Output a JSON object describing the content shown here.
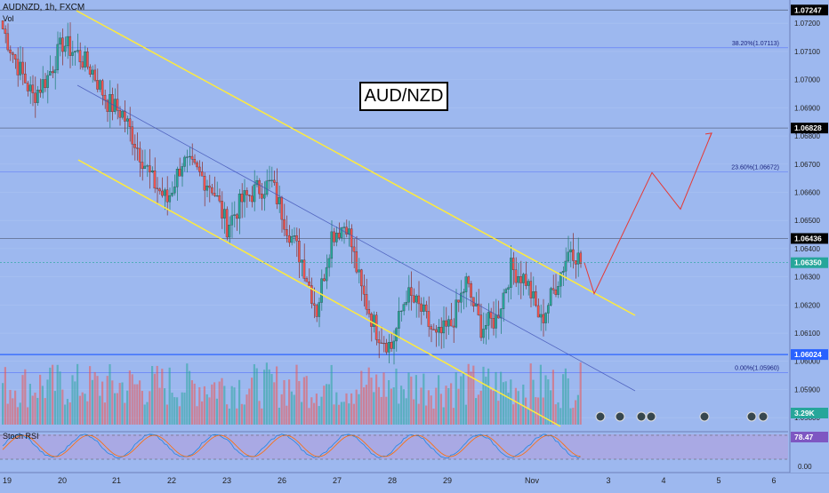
{
  "header": {
    "symbol": "AUDNZD, 1h, FXCM",
    "volume_label": "Vol",
    "currency": "NZD",
    "stoch_label": "Stoch RSI"
  },
  "annotation_title": "AUD/NZD",
  "price_axis": {
    "ticks": [
      "1.07200",
      "1.07100",
      "1.07000",
      "1.06900",
      "1.06800",
      "1.06700",
      "1.06600",
      "1.06500",
      "1.06400",
      "1.06300",
      "1.06200",
      "1.06100",
      "1.06000",
      "1.05900",
      "1.05800"
    ],
    "markers": [
      {
        "label": "1.07247",
        "color": "#000000",
        "text_color": "#ffffff"
      },
      {
        "label": "1.06828",
        "color": "#000000",
        "text_color": "#ffffff"
      },
      {
        "label": "1.06436",
        "color": "#000000",
        "text_color": "#ffffff"
      },
      {
        "label": "1.06350",
        "color": "#26a69a",
        "text_color": "#ffffff"
      },
      {
        "label": "1.06024",
        "color": "#2962ff",
        "text_color": "#ffffff"
      },
      {
        "label": "3.29K",
        "color": "#26a69a",
        "text_color": "#ffffff"
      },
      {
        "label": "78.47",
        "color": "#7e57c2",
        "text_color": "#ffffff"
      }
    ],
    "stoch_ticks": [
      "0.00"
    ]
  },
  "fib_labels": [
    {
      "label": "38.20%(1.07113)",
      "value": 1.07113
    },
    {
      "label": "23.60%(1.06672)",
      "value": 1.06672
    },
    {
      "label": "0.00%(1.05960)",
      "value": 1.0596
    }
  ],
  "time_axis": [
    "19",
    "20",
    "21",
    "22",
    "23",
    "26",
    "27",
    "28",
    "29",
    "Nov",
    "3",
    "4",
    "5",
    "6"
  ],
  "colors": {
    "background": "#9db8ef",
    "up": "#26a69a",
    "down": "#ef5350",
    "channel": "#ffeb3b",
    "midline": "#3f51b5",
    "projection": "#e53935",
    "stoch_band": "#b39ddb"
  },
  "chart_data": {
    "type": "candlestick",
    "symbol": "AUDNZD",
    "timeframe": "1h",
    "ylim": [
      1.0575,
      1.0727
    ],
    "horizontal_levels": [
      1.07247,
      1.06828,
      1.06436,
      1.06024
    ],
    "last_price": 1.0635,
    "close_path": [
      {
        "bar": 0,
        "close": 1.0718
      },
      {
        "bar": 6,
        "close": 1.0705
      },
      {
        "bar": 12,
        "close": 1.0694
      },
      {
        "bar": 18,
        "close": 1.0701
      },
      {
        "bar": 24,
        "close": 1.0713
      },
      {
        "bar": 30,
        "close": 1.0709
      },
      {
        "bar": 36,
        "close": 1.0703
      },
      {
        "bar": 42,
        "close": 1.0692
      },
      {
        "bar": 48,
        "close": 1.0688
      },
      {
        "bar": 54,
        "close": 1.0676
      },
      {
        "bar": 60,
        "close": 1.0664
      },
      {
        "bar": 66,
        "close": 1.0657
      },
      {
        "bar": 72,
        "close": 1.0671
      },
      {
        "bar": 78,
        "close": 1.0667
      },
      {
        "bar": 84,
        "close": 1.0662
      },
      {
        "bar": 90,
        "close": 1.0648
      },
      {
        "bar": 96,
        "close": 1.0657
      },
      {
        "bar": 102,
        "close": 1.0661
      },
      {
        "bar": 108,
        "close": 1.0663
      },
      {
        "bar": 114,
        "close": 1.0648
      },
      {
        "bar": 120,
        "close": 1.0636
      },
      {
        "bar": 126,
        "close": 1.0618
      },
      {
        "bar": 132,
        "close": 1.0645
      },
      {
        "bar": 138,
        "close": 1.0649
      },
      {
        "bar": 144,
        "close": 1.0625
      },
      {
        "bar": 150,
        "close": 1.0611
      },
      {
        "bar": 156,
        "close": 1.0605
      },
      {
        "bar": 162,
        "close": 1.0624
      },
      {
        "bar": 168,
        "close": 1.0618
      },
      {
        "bar": 174,
        "close": 1.0608
      },
      {
        "bar": 180,
        "close": 1.0613
      },
      {
        "bar": 186,
        "close": 1.0628
      },
      {
        "bar": 192,
        "close": 1.0612
      },
      {
        "bar": 198,
        "close": 1.0615
      },
      {
        "bar": 204,
        "close": 1.0633
      },
      {
        "bar": 210,
        "close": 1.0629
      },
      {
        "bar": 216,
        "close": 1.0614
      },
      {
        "bar": 222,
        "close": 1.0627
      },
      {
        "bar": 228,
        "close": 1.0641
      },
      {
        "bar": 232,
        "close": 1.0635
      }
    ],
    "projection": [
      1.0635,
      1.0624,
      1.0667,
      1.0654,
      1.0681
    ],
    "stoch_rsi_last": 78.47,
    "volume_last": "3.29K"
  }
}
